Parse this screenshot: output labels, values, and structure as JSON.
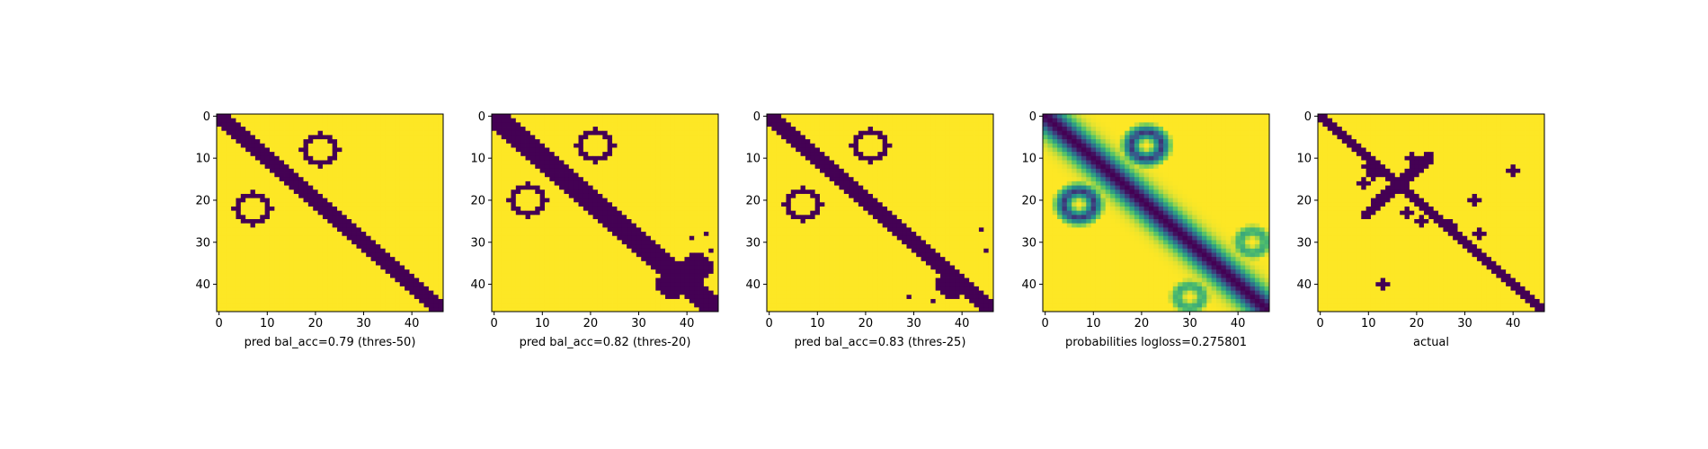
{
  "chart_data": [
    {
      "type": "heatmap",
      "xlabel": "pred bal_acc=0.79 (thres-50)",
      "x_ticks": [
        0,
        10,
        20,
        30,
        40
      ],
      "y_ticks": [
        0,
        10,
        20,
        30,
        40
      ],
      "size": 47,
      "grid": false,
      "colormap": "viridis",
      "values": {
        "diagonal": {
          "start": 0,
          "end": 46,
          "half_width": 1.6
        },
        "loops": [
          [
            22,
            7
          ],
          [
            8,
            21
          ]
        ]
      }
    },
    {
      "type": "heatmap",
      "xlabel": "pred bal_acc=0.82 (thres-20)",
      "x_ticks": [
        0,
        10,
        20,
        30,
        40
      ],
      "y_ticks": [
        0,
        10,
        20,
        30,
        40
      ],
      "size": 47,
      "grid": false,
      "colormap": "viridis",
      "values": {
        "diagonal": {
          "start": 0,
          "end": 46,
          "half_width": 2.3
        },
        "loops": [
          [
            20,
            7
          ],
          [
            7,
            21
          ]
        ],
        "lower_right_blob": [
          [
            40,
            37
          ],
          [
            36,
            42
          ]
        ],
        "specks": [
          [
            28,
            44
          ],
          [
            29,
            41
          ],
          [
            32,
            45
          ],
          [
            35,
            44
          ],
          [
            38,
            44
          ]
        ]
      }
    },
    {
      "type": "heatmap",
      "xlabel": "pred bal_acc=0.83 (thres-25)",
      "x_ticks": [
        0,
        10,
        20,
        30,
        40
      ],
      "y_ticks": [
        0,
        10,
        20,
        30,
        40
      ],
      "size": 47,
      "grid": false,
      "colormap": "viridis",
      "values": {
        "diagonal": {
          "start": 0,
          "end": 46,
          "half_width": 2.0
        },
        "loops": [
          [
            21,
            7
          ],
          [
            7,
            21
          ]
        ],
        "lower_right_blob": [
          [
            40,
            38
          ]
        ],
        "specks": [
          [
            27,
            44
          ],
          [
            32,
            45
          ],
          [
            43,
            29
          ],
          [
            44,
            34
          ]
        ]
      }
    },
    {
      "type": "heatmap",
      "xlabel": "probabilities logloss=0.275801",
      "x_ticks": [
        0,
        10,
        20,
        30,
        40
      ],
      "y_ticks": [
        0,
        10,
        20,
        30,
        40
      ],
      "size": 47,
      "grid": false,
      "colormap": "viridis",
      "values": {
        "diagonal": {
          "start": 0,
          "end": 46,
          "half_width": 2.0
        },
        "loops": [
          [
            21,
            7
          ],
          [
            7,
            21
          ]
        ],
        "faint_loops": [
          [
            43,
            30
          ],
          [
            30,
            43
          ]
        ]
      }
    },
    {
      "type": "heatmap",
      "xlabel": "actual",
      "x_ticks": [
        0,
        10,
        20,
        30,
        40
      ],
      "y_ticks": [
        0,
        10,
        20,
        30,
        40
      ],
      "size": 47,
      "grid": false,
      "colormap": "viridis",
      "values": {
        "diagonal": {
          "start": 0,
          "end": 46,
          "half_width": 1.4
        },
        "cross_segment": {
          "from": [
            9,
            23
          ],
          "to": [
            24,
            9
          ]
        },
        "scatter_points": [
          [
            12,
            10
          ],
          [
            14,
            11
          ],
          [
            16,
            9
          ],
          [
            10,
            19
          ],
          [
            13,
            19
          ],
          [
            11,
            22
          ],
          [
            23,
            18
          ],
          [
            25,
            21
          ],
          [
            26,
            27
          ],
          [
            20,
            32
          ],
          [
            28,
            33
          ],
          [
            40,
            13
          ],
          [
            13,
            40
          ],
          [
            12,
            20
          ]
        ]
      }
    }
  ]
}
